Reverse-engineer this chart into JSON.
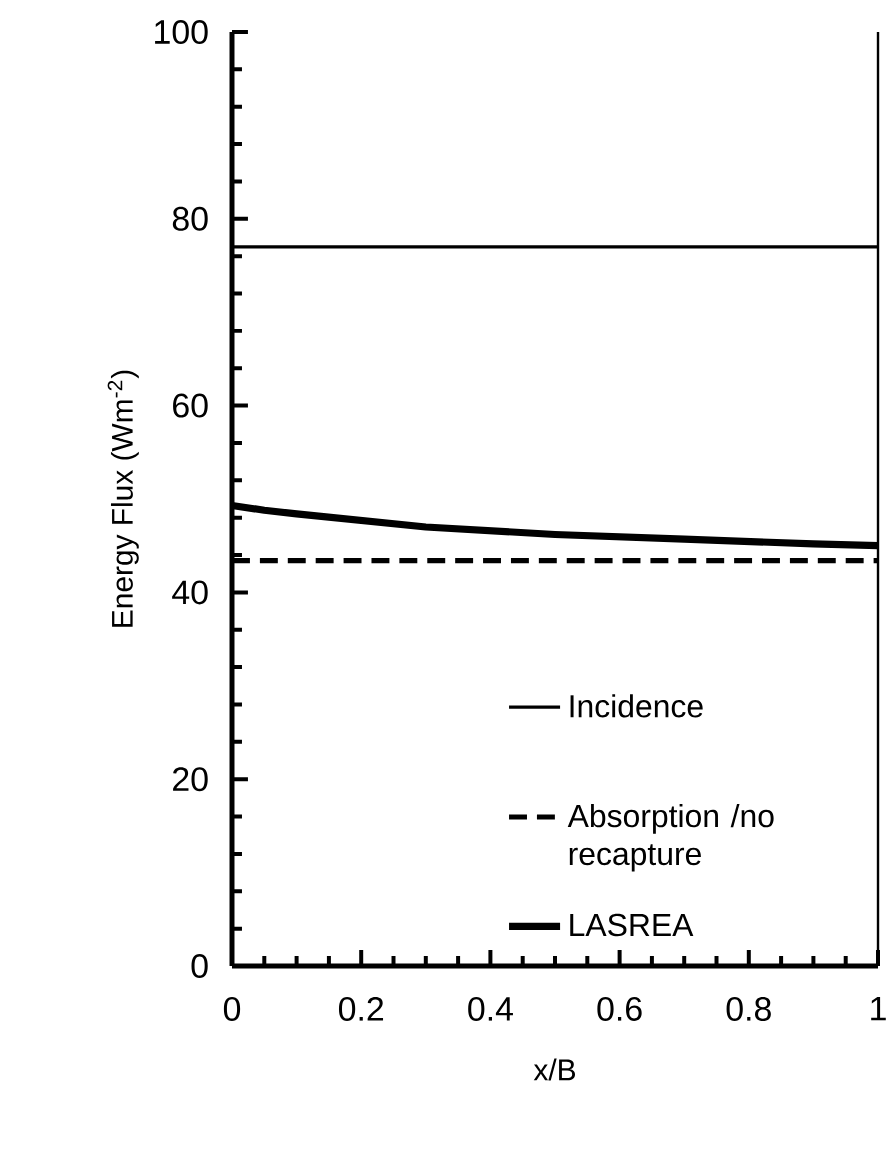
{
  "chart_data": {
    "type": "line",
    "xlabel": "x/B",
    "ylabel": "Energy Flux (Wm$^{-2}$)",
    "xlim": [
      0,
      1
    ],
    "ylim": [
      0,
      100
    ],
    "xticks": [
      0,
      0.2,
      0.4,
      0.6,
      0.8,
      1
    ],
    "yticks": [
      0,
      20,
      40,
      60,
      80,
      100
    ],
    "legend": "bottom right",
    "grid": false,
    "marker": "none",
    "series": [
      {
        "name": "Incidence",
        "color": "#000000",
        "line_style": "solid",
        "x": [
          0,
          0.5,
          1
        ],
        "values": [
          77,
          77,
          77
        ]
      },
      {
        "name": "Absorption /no recapture",
        "color": "#000000",
        "line_style": "dashed",
        "x": [
          0,
          0.5,
          1
        ],
        "values": [
          43.4,
          43.4,
          43.4
        ]
      },
      {
        "name": "LASREA",
        "color": "#000000",
        "line_style": "solid",
        "x": [
          0,
          0.05,
          0.1,
          0.3,
          0.5,
          0.7,
          0.9,
          1
        ],
        "values": [
          49.3,
          48.8,
          48.4,
          47.0,
          46.2,
          45.7,
          45.2,
          45.0
        ]
      }
    ]
  }
}
